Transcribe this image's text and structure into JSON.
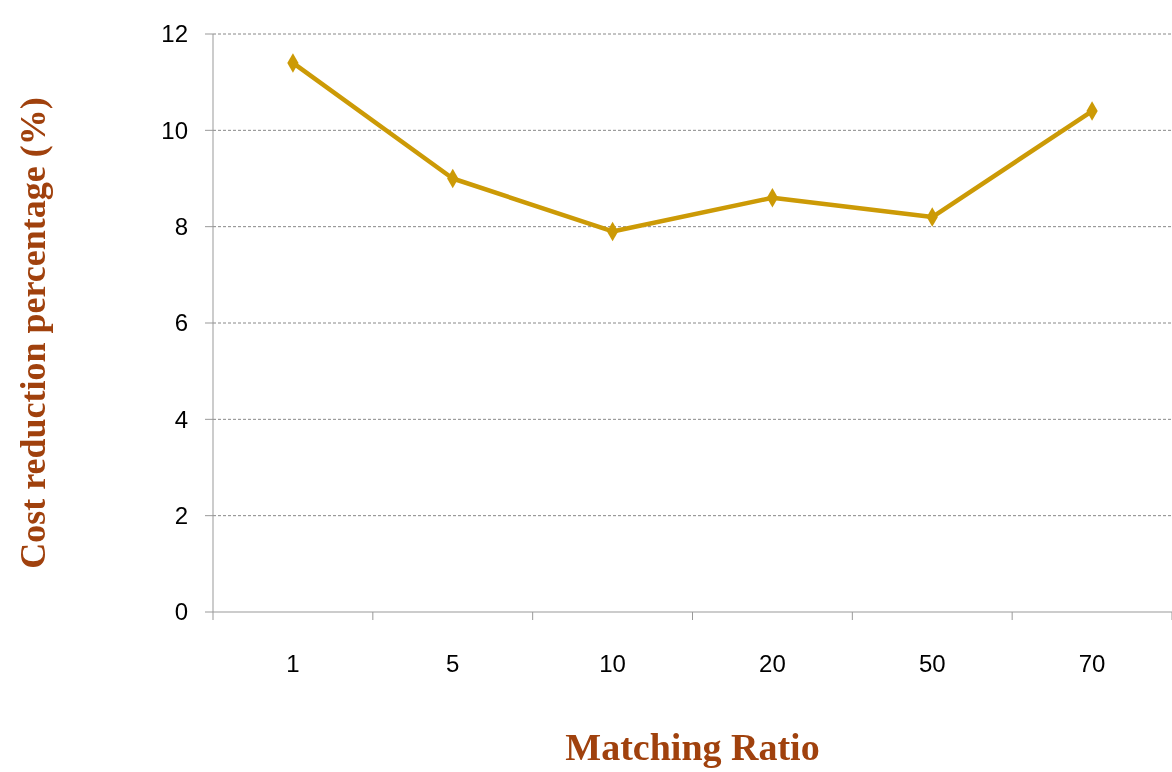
{
  "chart_data": {
    "type": "line",
    "xlabel": "Matching Ratio",
    "ylabel": "Cost reduction percentage (%)",
    "categories": [
      "1",
      "5",
      "10",
      "20",
      "50",
      "70"
    ],
    "series": [
      {
        "color": "#cc9a06",
        "values": [
          11.4,
          9.0,
          7.9,
          8.6,
          8.2,
          10.4
        ]
      }
    ],
    "ylim": [
      0,
      12
    ],
    "yticks": [
      0,
      2,
      4,
      6,
      8,
      10,
      12
    ],
    "grid": "y",
    "marker": "diamond",
    "line_style": "solid"
  }
}
